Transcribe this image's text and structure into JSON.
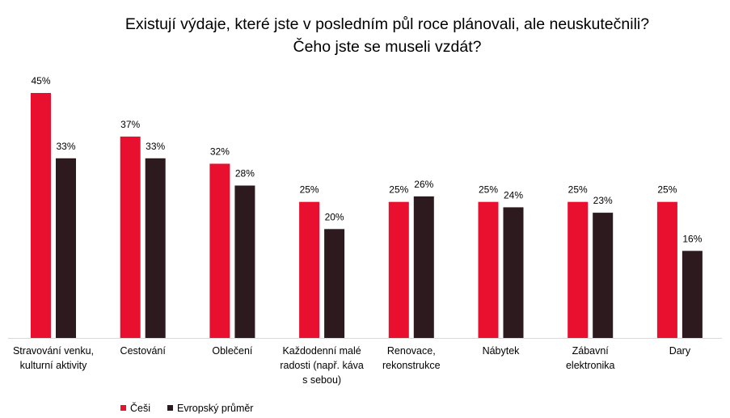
{
  "chart_data": {
    "type": "bar",
    "title": "Existují výdaje, které jste v posledním půl roce plánovali, ale neuskutečnili? Čeho jste se museli vzdát?",
    "title_lines": [
      "Existují výdaje, které jste v posledním půl roce plánovali, ale neuskutečnili?",
      "Čeho jste se museli vzdát?"
    ],
    "categories": [
      "Stravování venku, kulturní aktivity",
      "Cestování",
      "Oblečení",
      "Každodenní malé radosti (např. káva s sebou)",
      "Renovace, rekonstrukce",
      "Nábytek",
      "Zábavní elektronika",
      "Dary"
    ],
    "category_lines": [
      [
        "Stravování venku,",
        "kulturní aktivity"
      ],
      [
        "Cestování"
      ],
      [
        "Oblečení"
      ],
      [
        "Každodenní malé",
        "radosti (např. káva",
        "s sebou)"
      ],
      [
        "Renovace,",
        "rekonstrukce"
      ],
      [
        "Nábytek"
      ],
      [
        "Zábavní",
        "elektronika"
      ],
      [
        "Dary"
      ]
    ],
    "series": [
      {
        "name": "Češi",
        "color": "#e8102e",
        "values": [
          45,
          37,
          32,
          25,
          25,
          25,
          25,
          25
        ],
        "labels": [
          "45%",
          "37%",
          "32%",
          "25%",
          "25%",
          "25%",
          "25%",
          "25%"
        ]
      },
      {
        "name": "Evropský průměr",
        "color": "#2d1a1e",
        "values": [
          33,
          33,
          28,
          20,
          26,
          24,
          23,
          16
        ],
        "labels": [
          "33%",
          "33%",
          "28%",
          "20%",
          "26%",
          "24%",
          "23%",
          "16%"
        ]
      }
    ],
    "ylim": [
      0,
      45
    ],
    "unit": "%",
    "grid": false,
    "legend_position": "bottom-left",
    "axis_color": "#d9d9d9"
  }
}
